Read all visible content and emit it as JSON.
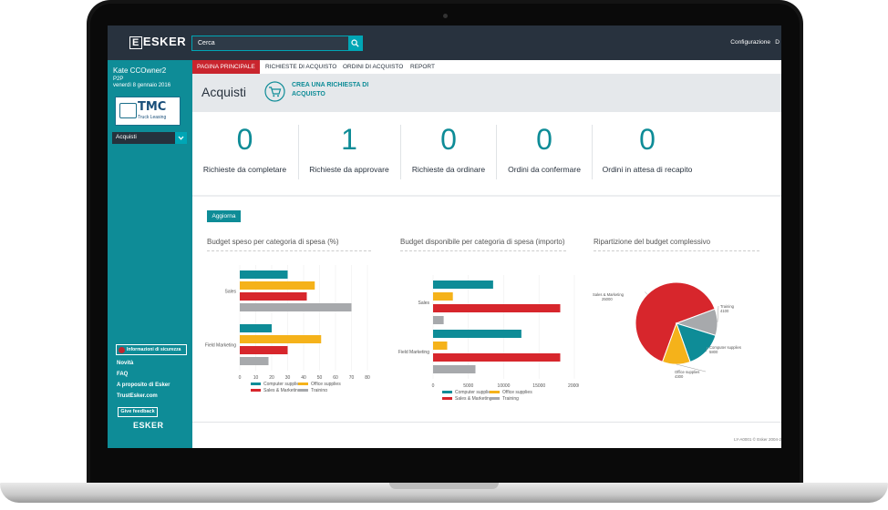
{
  "app": {
    "logo": "ESKER",
    "search_placeholder": "Cerca",
    "config_label": "Configurazione",
    "config_extra": "D"
  },
  "user": {
    "name": "Kate CCOwner2",
    "role": "P2P",
    "date": "venerdì 8 gennaio 2016"
  },
  "company": {
    "logo_text": "TMC",
    "logo_sub": "Truck Leasing"
  },
  "sidebar": {
    "nav_select": "Acquisti",
    "security_label": "Informazioni di sicurezza",
    "links": [
      "Novità",
      "FAQ",
      "A proposito di Esker",
      "TrustEsker.com"
    ],
    "feedback_label": "Give feedback",
    "footer_logo": "ESKER"
  },
  "tabs": [
    {
      "label": "PAGINA PRINCIPALE",
      "active": true
    },
    {
      "label": "RICHIESTE DI ACQUISTO",
      "active": false
    },
    {
      "label": "ORDINI DI ACQUISTO",
      "active": false
    },
    {
      "label": "REPORT",
      "active": false
    }
  ],
  "header": {
    "title": "Acquisti",
    "create_label": "CREA UNA RICHIESTA DI ACQUISTO"
  },
  "counters": [
    {
      "value": "0",
      "label": "Richieste da completare"
    },
    {
      "value": "1",
      "label": "Richieste da approvare"
    },
    {
      "value": "0",
      "label": "Richieste da ordinare"
    },
    {
      "value": "0",
      "label": "Ordini da confermare"
    },
    {
      "value": "0",
      "label": "Ordini in attesa di recapito"
    }
  ],
  "refresh_label": "Aggiorna",
  "colors": {
    "computer_supplies": "#0e8c97",
    "office_supplies": "#f5b21a",
    "sales_marketing": "#d7262c",
    "training": "#a7a9ac"
  },
  "chart_titles": [
    "Budget speso per categoria di spesa (%)",
    "Budget disponibile per categoria di spesa (importo)",
    "Ripartizione del budget complessivo"
  ],
  "chart_data": [
    {
      "type": "bar",
      "orientation": "horizontal",
      "title": "Budget speso per categoria di spesa (%)",
      "categories": [
        "Sales",
        "Field Marketing"
      ],
      "xlim": [
        0,
        80
      ],
      "xticks": [
        0,
        10,
        20,
        30,
        40,
        50,
        60,
        70,
        80
      ],
      "series": [
        {
          "name": "Computer supplies",
          "color": "#0e8c97",
          "values": [
            30,
            20
          ]
        },
        {
          "name": "Office supplies",
          "color": "#f5b21a",
          "values": [
            47,
            51
          ]
        },
        {
          "name": "Sales & Marketing",
          "color": "#d7262c",
          "values": [
            42,
            30
          ]
        },
        {
          "name": "Training",
          "color": "#a7a9ac",
          "values": [
            70,
            18
          ]
        }
      ]
    },
    {
      "type": "bar",
      "orientation": "horizontal",
      "title": "Budget disponibile per categoria di spesa (importo)",
      "categories": [
        "Sales",
        "Field Marketing"
      ],
      "xlim": [
        0,
        20000
      ],
      "xticks": [
        0,
        5000,
        10000,
        15000,
        20000
      ],
      "series": [
        {
          "name": "Computer supplies",
          "color": "#0e8c97",
          "values": [
            8500,
            12500
          ]
        },
        {
          "name": "Office supplies",
          "color": "#f5b21a",
          "values": [
            2800,
            2000
          ]
        },
        {
          "name": "Sales & Marketing",
          "color": "#d7262c",
          "values": [
            18000,
            18000
          ]
        },
        {
          "name": "Training",
          "color": "#a7a9ac",
          "values": [
            1500,
            6000
          ]
        }
      ]
    },
    {
      "type": "pie",
      "title": "Ripartizione del budget complessivo",
      "slices": [
        {
          "label": "Sales & Marketing",
          "value_label": "25000",
          "value": 25000,
          "color": "#d7262c"
        },
        {
          "label": "Training",
          "value_label": "4100",
          "value": 4100,
          "color": "#a7a9ac"
        },
        {
          "label": "Computer supplies",
          "value_label": "5800",
          "value": 5800,
          "color": "#0e8c97"
        },
        {
          "label": "Office supplies",
          "value_label": "4300",
          "value": 4300,
          "color": "#f5b21a"
        }
      ]
    }
  ],
  "footer": "LY-A0001 © Esker 2004-2"
}
